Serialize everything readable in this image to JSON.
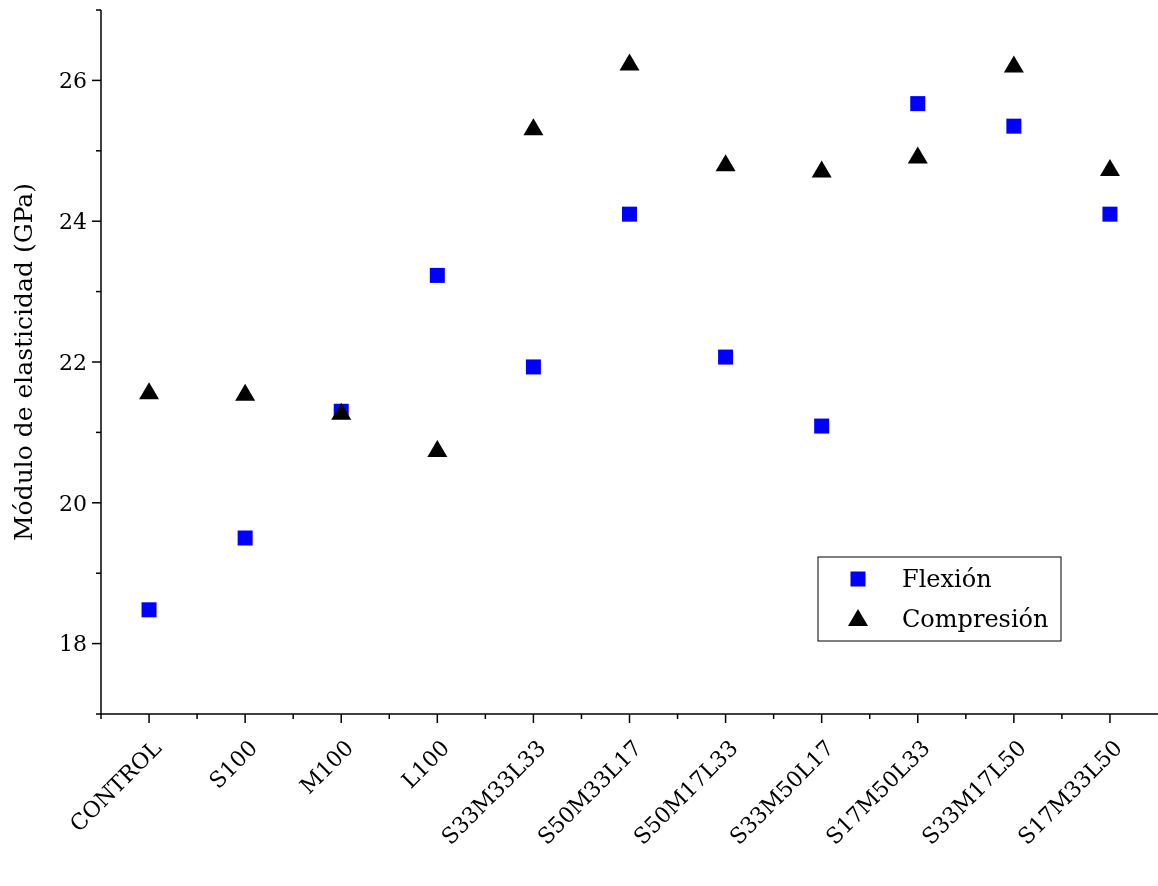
{
  "chart_data": {
    "type": "scatter",
    "ylabel": "Módulo de elasticidad (GPa)",
    "categories": [
      "CONTROL",
      "S100",
      "M100",
      "L100",
      "S33M33L33",
      "S50M33L17",
      "S50M17L33",
      "S33M50L17",
      "S17M50L33",
      "S33M17L50",
      "S17M33L50"
    ],
    "series": [
      {
        "name": "Flexión",
        "color": "#0000ff",
        "marker": "square",
        "values": [
          18.48,
          19.5,
          21.3,
          23.23,
          21.93,
          24.1,
          22.07,
          21.09,
          25.67,
          25.35,
          24.1
        ]
      },
      {
        "name": "Compresión",
        "color": "#000000",
        "marker": "triangle",
        "values": [
          21.57,
          21.55,
          21.28,
          20.75,
          25.32,
          26.24,
          24.81,
          24.72,
          24.92,
          26.21,
          24.74
        ]
      }
    ],
    "ylim": [
      17,
      27
    ],
    "yticks": [
      {
        "value": 17,
        "label": null
      },
      18,
      {
        "value": 19,
        "label": null
      },
      20,
      {
        "value": 21,
        "label": null
      },
      22,
      {
        "value": 23,
        "label": null
      },
      24,
      {
        "value": 25,
        "label": null
      },
      26,
      {
        "value": 27,
        "label": null
      }
    ],
    "grid": false,
    "legend": "bottom right"
  }
}
